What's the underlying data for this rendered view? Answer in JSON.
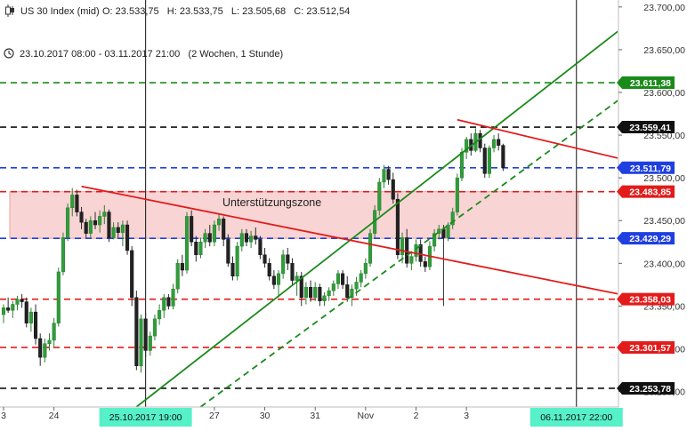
{
  "header": {
    "symbol": "US 30 Index (mid)",
    "ohlc": "O: 23.533,75   H: 23.533,75   L: 23.505,68   C: 23.512,54",
    "range": "23.10.2017 08:00 - 03.11.2017 21:00   (2 Wochen, 1 Stunde)"
  },
  "icons": [
    "candle-icon",
    "clock-icon"
  ],
  "chart_data": {
    "type": "candlestick",
    "title": "US 30 Index (mid)",
    "ylim": [
      23235,
      23705
    ],
    "y_ticks": [
      {
        "value": 23700,
        "label": "23.700,00"
      },
      {
        "value": 23650,
        "label": "23.650,00"
      },
      {
        "value": 23600,
        "label": "23.600,00"
      },
      {
        "value": 23550,
        "label": "23.550,00"
      },
      {
        "value": 23500,
        "label": "23.500,00"
      },
      {
        "value": 23450,
        "label": "23.450,00"
      },
      {
        "value": 23400,
        "label": "23.400,00"
      },
      {
        "value": 23350,
        "label": "23.350,00"
      },
      {
        "value": 23300,
        "label": "23.300,00"
      },
      {
        "value": 23250,
        "label": "23.250,00"
      }
    ],
    "x_ticks": [
      {
        "bar": 0,
        "label": "3"
      },
      {
        "bar": 11,
        "label": "24"
      },
      {
        "bar": 46,
        "label": "27"
      },
      {
        "bar": 57,
        "label": "30"
      },
      {
        "bar": 68,
        "label": "31"
      },
      {
        "bar": 79,
        "label": "Nov"
      },
      {
        "bar": 90,
        "label": "2"
      },
      {
        "bar": 101,
        "label": "3"
      }
    ],
    "x_markers": [
      {
        "bar": 31,
        "label": "25.10.2017 19:00"
      },
      {
        "bar": 125,
        "label": "06.11.2017 22:00"
      }
    ],
    "price_levels": [
      {
        "value": 23611.38,
        "label": "23.611,38",
        "color": "#1a8a1a",
        "label_bg": "#1a8a1a"
      },
      {
        "value": 23559.41,
        "label": "23.559,41",
        "color": "#111111",
        "label_bg": "#111111"
      },
      {
        "value": 23511.79,
        "label": "23.511,79",
        "color": "#1f3fe0",
        "label_bg": "#1f3fe0"
      },
      {
        "value": 23483.85,
        "label": "23.483,85",
        "color": "#e21b1b",
        "label_bg": "#e21b1b"
      },
      {
        "value": 23429.29,
        "label": "23.429,29",
        "color": "#1f3fe0",
        "label_bg": "#1f3fe0"
      },
      {
        "value": 23358.03,
        "label": "23.358,03",
        "color": "#e21b1b",
        "label_bg": "#e21b1b"
      },
      {
        "value": 23301.57,
        "label": "23.301,57",
        "color": "#e21b1b",
        "label_bg": "#e21b1b"
      },
      {
        "value": 23253.78,
        "label": "23.253,78",
        "color": "#111111",
        "label_bg": "#111111"
      }
    ],
    "zone": {
      "label": "Unterstützungszone",
      "from": 23429.29,
      "to": 23483.85,
      "color": "#f7c6c6"
    },
    "trendlines": [
      {
        "bar1": 29,
        "price1": 23232,
        "bar2": 138,
        "price2": 23688,
        "color": "#1a8a1a",
        "dash": false
      },
      {
        "bar1": 43,
        "price1": 23232,
        "bar2": 138,
        "price2": 23606,
        "color": "#1a8a1a",
        "dash": true
      },
      {
        "bar1": 17,
        "price1": 23490,
        "bar2": 138,
        "price2": 23360,
        "color": "#e21b1b",
        "dash": false
      },
      {
        "bar1": 99,
        "price1": 23568,
        "bar2": 138,
        "price2": 23518,
        "color": "#e21b1b",
        "dash": false
      }
    ],
    "candles": [
      [
        23340,
        23352,
        23330,
        23348
      ],
      [
        23348,
        23360,
        23342,
        23345
      ],
      [
        23345,
        23356,
        23336,
        23352
      ],
      [
        23352,
        23362,
        23345,
        23358
      ],
      [
        23358,
        23364,
        23348,
        23355
      ],
      [
        23355,
        23360,
        23325,
        23330
      ],
      [
        23330,
        23348,
        23320,
        23343
      ],
      [
        23343,
        23352,
        23305,
        23312
      ],
      [
        23312,
        23318,
        23280,
        23290
      ],
      [
        23290,
        23312,
        23284,
        23306
      ],
      [
        23306,
        23318,
        23298,
        23310
      ],
      [
        23310,
        23336,
        23302,
        23330
      ],
      [
        23330,
        23395,
        23326,
        23390
      ],
      [
        23390,
        23436,
        23386,
        23430
      ],
      [
        23430,
        23470,
        23426,
        23465
      ],
      [
        23465,
        23488,
        23455,
        23480
      ],
      [
        23480,
        23486,
        23455,
        23460
      ],
      [
        23460,
        23466,
        23440,
        23448
      ],
      [
        23448,
        23452,
        23430,
        23435
      ],
      [
        23435,
        23455,
        23430,
        23450
      ],
      [
        23450,
        23460,
        23440,
        23445
      ],
      [
        23445,
        23462,
        23436,
        23455
      ],
      [
        23455,
        23468,
        23446,
        23460
      ],
      [
        23460,
        23463,
        23425,
        23430
      ],
      [
        23430,
        23448,
        23428,
        23442
      ],
      [
        23442,
        23448,
        23430,
        23436
      ],
      [
        23436,
        23450,
        23420,
        23445
      ],
      [
        23445,
        23450,
        23410,
        23415
      ],
      [
        23415,
        23420,
        23350,
        23360
      ],
      [
        23360,
        23368,
        23275,
        23280
      ],
      [
        23280,
        23340,
        23272,
        23335
      ],
      [
        23335,
        23342,
        23290,
        23298
      ],
      [
        23298,
        23320,
        23292,
        23315
      ],
      [
        23315,
        23340,
        23310,
        23335
      ],
      [
        23335,
        23352,
        23328,
        23345
      ],
      [
        23345,
        23364,
        23336,
        23360
      ],
      [
        23360,
        23364,
        23346,
        23350
      ],
      [
        23350,
        23376,
        23346,
        23370
      ],
      [
        23370,
        23405,
        23365,
        23400
      ],
      [
        23400,
        23410,
        23385,
        23392
      ],
      [
        23392,
        23460,
        23388,
        23455
      ],
      [
        23455,
        23462,
        23420,
        23425
      ],
      [
        23425,
        23432,
        23402,
        23410
      ],
      [
        23410,
        23430,
        23406,
        23425
      ],
      [
        23425,
        23440,
        23418,
        23435
      ],
      [
        23435,
        23445,
        23420,
        23425
      ],
      [
        23425,
        23450,
        23420,
        23445
      ],
      [
        23445,
        23458,
        23438,
        23452
      ],
      [
        23452,
        23455,
        23420,
        23428
      ],
      [
        23428,
        23434,
        23396,
        23400
      ],
      [
        23400,
        23408,
        23380,
        23385
      ],
      [
        23385,
        23425,
        23380,
        23420
      ],
      [
        23420,
        23440,
        23414,
        23435
      ],
      [
        23435,
        23440,
        23420,
        23425
      ],
      [
        23425,
        23438,
        23418,
        23432
      ],
      [
        23432,
        23442,
        23422,
        23428
      ],
      [
        23428,
        23432,
        23405,
        23410
      ],
      [
        23410,
        23418,
        23395,
        23400
      ],
      [
        23400,
        23406,
        23380,
        23385
      ],
      [
        23385,
        23392,
        23370,
        23375
      ],
      [
        23375,
        23392,
        23360,
        23388
      ],
      [
        23388,
        23416,
        23382,
        23410
      ],
      [
        23410,
        23418,
        23392,
        23400
      ],
      [
        23400,
        23406,
        23375,
        23380
      ],
      [
        23380,
        23390,
        23362,
        23385
      ],
      [
        23385,
        23390,
        23350,
        23360
      ],
      [
        23360,
        23378,
        23352,
        23372
      ],
      [
        23372,
        23380,
        23355,
        23360
      ],
      [
        23360,
        23378,
        23356,
        23372
      ],
      [
        23372,
        23376,
        23350,
        23356
      ],
      [
        23356,
        23366,
        23350,
        23362
      ],
      [
        23362,
        23372,
        23356,
        23368
      ],
      [
        23368,
        23380,
        23362,
        23376
      ],
      [
        23376,
        23392,
        23370,
        23388
      ],
      [
        23388,
        23392,
        23370,
        23375
      ],
      [
        23375,
        23385,
        23355,
        23360
      ],
      [
        23360,
        23375,
        23350,
        23370
      ],
      [
        23370,
        23384,
        23362,
        23378
      ],
      [
        23378,
        23392,
        23372,
        23388
      ],
      [
        23388,
        23406,
        23382,
        23400
      ],
      [
        23400,
        23440,
        23396,
        23435
      ],
      [
        23435,
        23468,
        23430,
        23462
      ],
      [
        23462,
        23500,
        23456,
        23495
      ],
      [
        23495,
        23515,
        23488,
        23510
      ],
      [
        23510,
        23514,
        23492,
        23498
      ],
      [
        23498,
        23506,
        23470,
        23475
      ],
      [
        23475,
        23482,
        23405,
        23410
      ],
      [
        23410,
        23436,
        23400,
        23430
      ],
      [
        23430,
        23440,
        23395,
        23400
      ],
      [
        23400,
        23412,
        23392,
        23408
      ],
      [
        23408,
        23428,
        23402,
        23422
      ],
      [
        23422,
        23428,
        23396,
        23402
      ],
      [
        23402,
        23408,
        23390,
        23396
      ],
      [
        23396,
        23426,
        23392,
        23420
      ],
      [
        23420,
        23440,
        23414,
        23435
      ],
      [
        23435,
        23445,
        23428,
        23440
      ],
      [
        23440,
        23445,
        23350,
        23430
      ],
      [
        23430,
        23448,
        23426,
        23445
      ],
      [
        23445,
        23465,
        23440,
        23460
      ],
      [
        23460,
        23505,
        23456,
        23500
      ],
      [
        23500,
        23535,
        23496,
        23530
      ],
      [
        23530,
        23548,
        23522,
        23545
      ],
      [
        23545,
        23552,
        23526,
        23532
      ],
      [
        23532,
        23558,
        23530,
        23552
      ],
      [
        23552,
        23556,
        23530,
        23535
      ],
      [
        23535,
        23540,
        23500,
        23505
      ],
      [
        23505,
        23538,
        23500,
        23535
      ],
      [
        23535,
        23550,
        23530,
        23545
      ],
      [
        23545,
        23552,
        23532,
        23538
      ],
      [
        23538,
        23540,
        23508,
        23512
      ]
    ]
  }
}
